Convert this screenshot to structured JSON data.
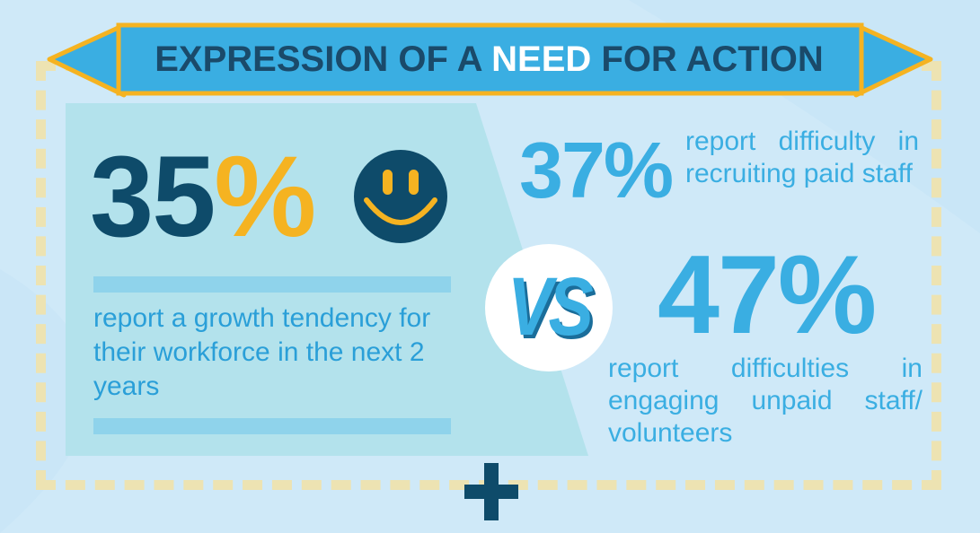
{
  "title": {
    "before": "EXPRESSION OF A ",
    "highlight": "NEED",
    "after": " FOR ACTION"
  },
  "stat_growth": {
    "value": "35",
    "unit": "%",
    "text": "report a growth tendency for their workforce in the next 2 years"
  },
  "stat_recruiting": {
    "value": "37%",
    "text": "report difficulty in recruiting paid staff"
  },
  "versus_label": "VS",
  "stat_engaging": {
    "value": "47%",
    "text": "report difficulties in engaging unpaid staff/ volunteers"
  },
  "colors": {
    "background": "#cfe9f8",
    "panel": "#b3e2ec",
    "ribbon": "#3aaee2",
    "ribbon_border": "#f5b321",
    "dark_text": "#0e4b6a",
    "accent_yellow": "#f5b321",
    "light_blue_text": "#3aaee2",
    "dash": "#ede3b2"
  },
  "icons": {
    "smiley": "smiley-face-icon",
    "plus": "plus-icon"
  }
}
